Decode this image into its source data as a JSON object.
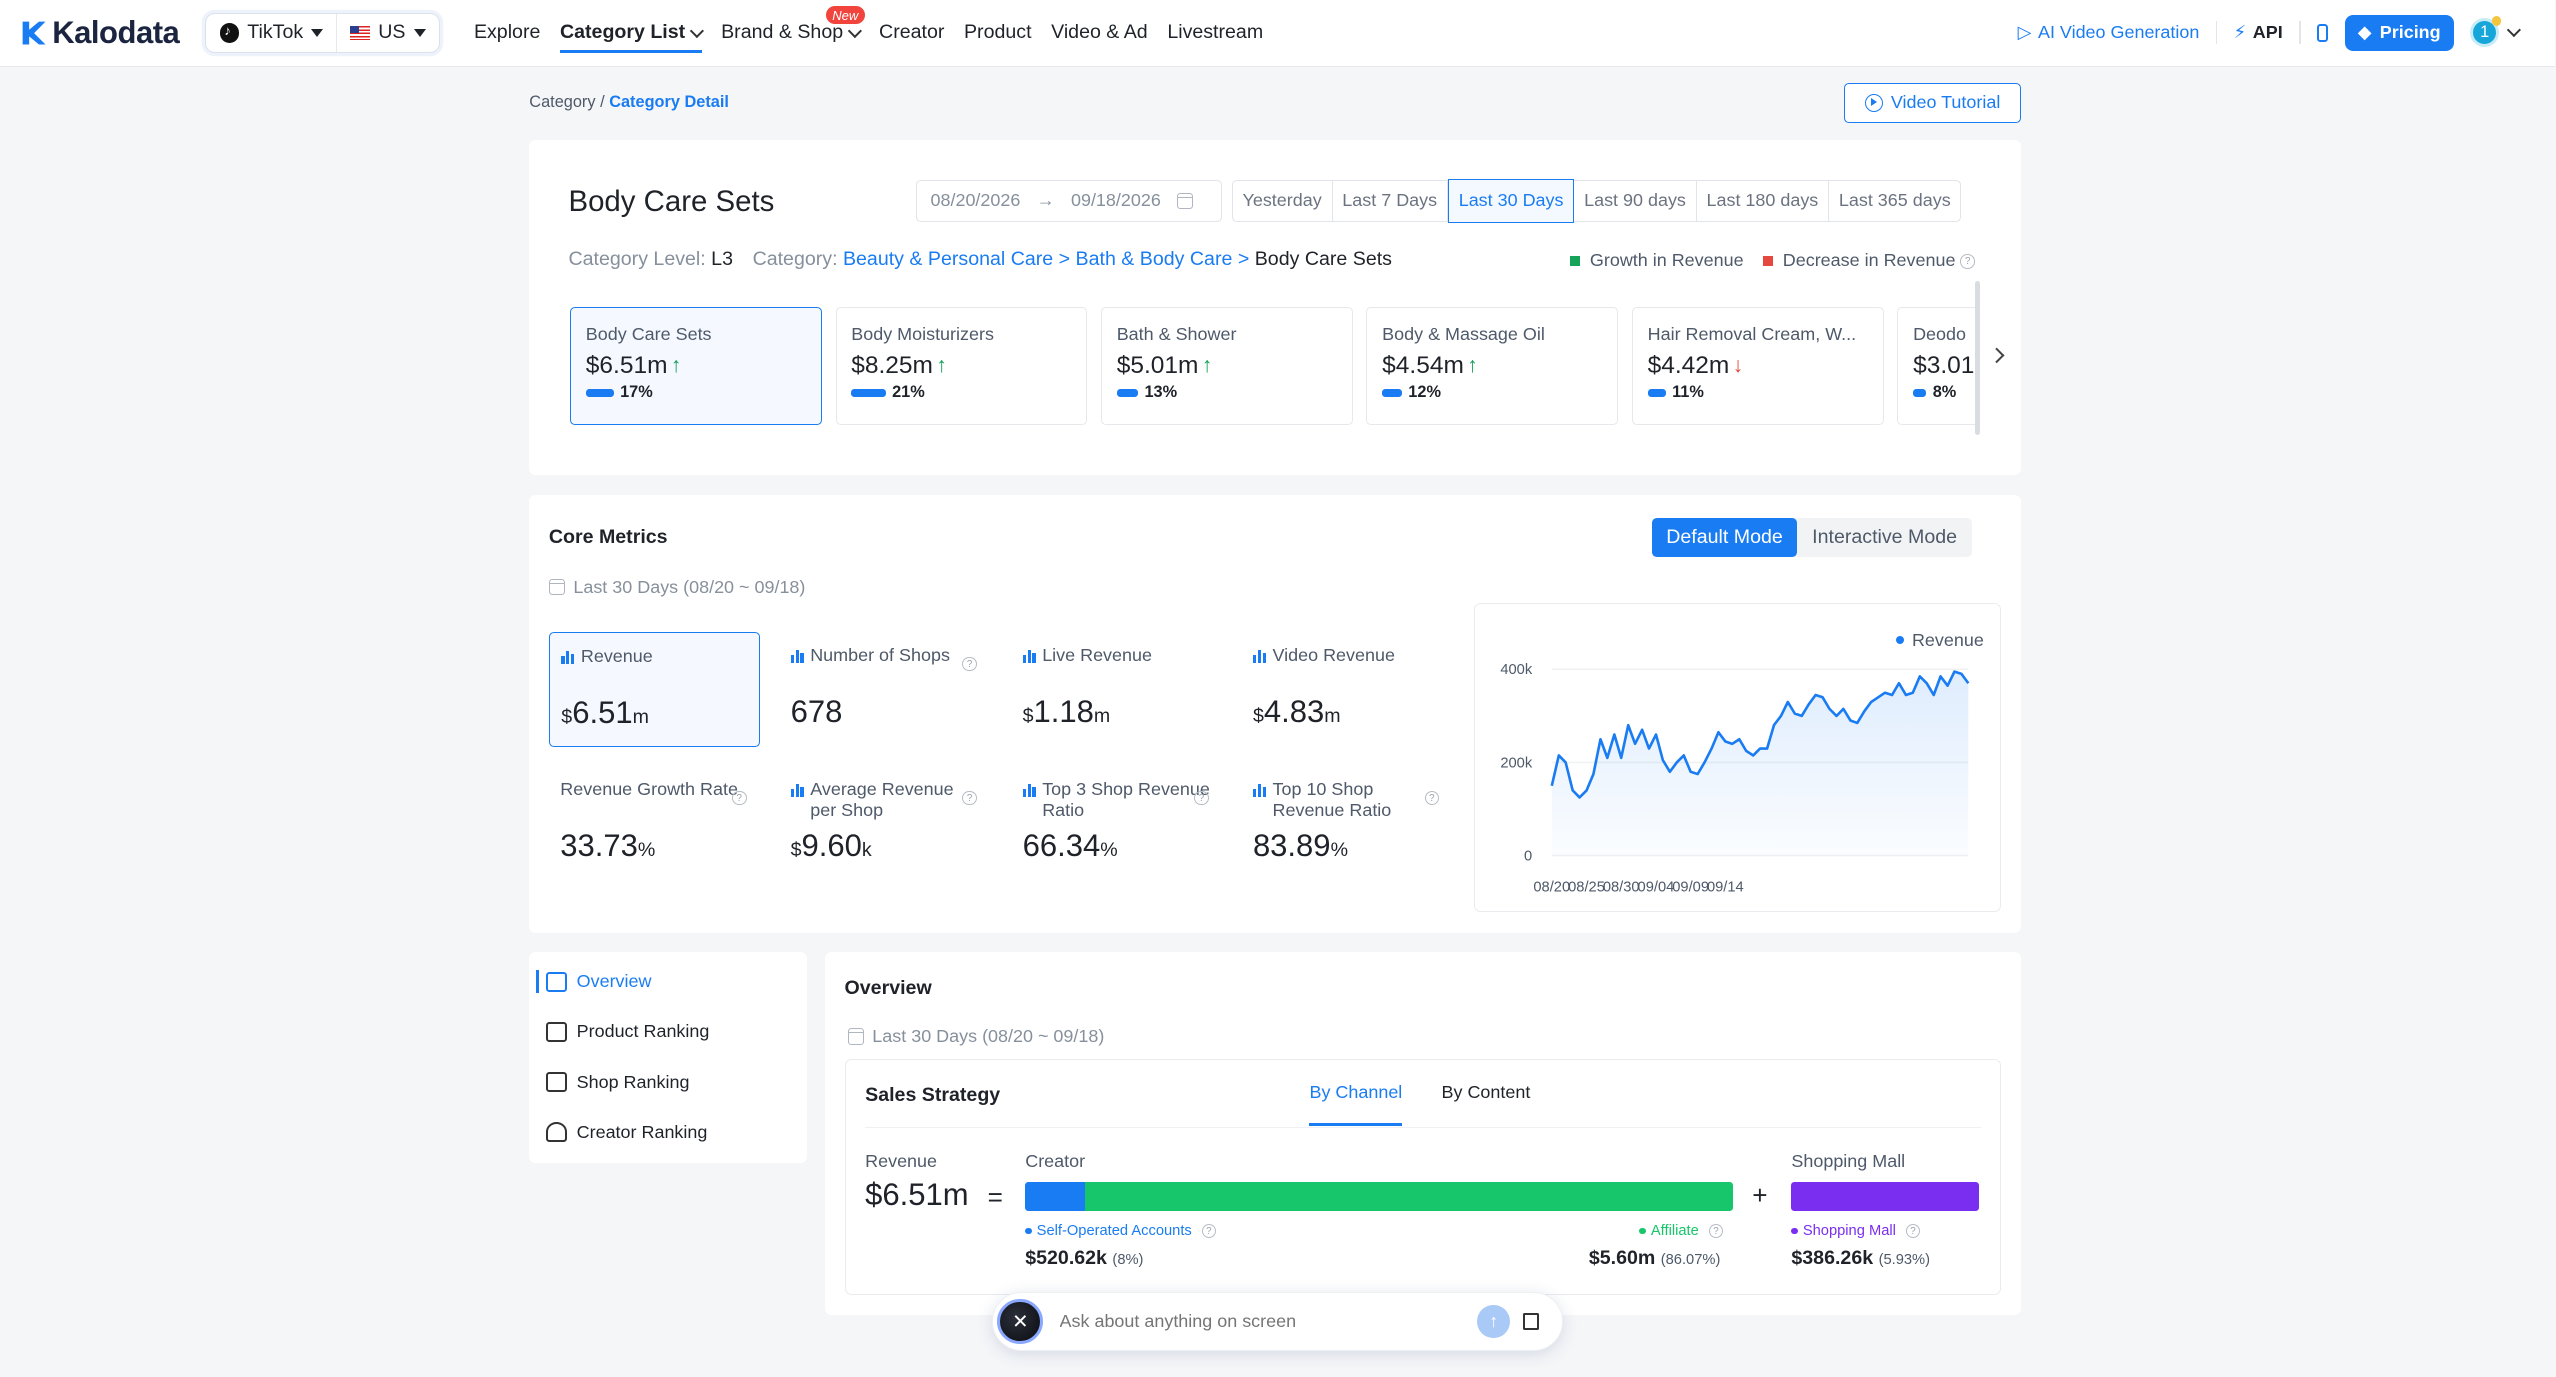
{
  "brand": {
    "name": "Kalodata"
  },
  "region": {
    "platform": "TikTok",
    "country": "US"
  },
  "nav": {
    "items": [
      "Explore",
      "Category List",
      "Brand & Shop",
      "Creator",
      "Product",
      "Video & Ad",
      "Livestream"
    ],
    "new_badge": "New"
  },
  "top_right": {
    "ai_video": "AI Video Generation",
    "api": "API",
    "pricing": "Pricing",
    "avatar": "1"
  },
  "breadcrumb": {
    "root": "Category",
    "sep": "/",
    "current": "Category Detail"
  },
  "video_tutorial": "Video Tutorial",
  "header": {
    "title": "Body Care Sets",
    "date_start": "08/20/2026",
    "date_arrow": "→",
    "date_end": "09/18/2026",
    "periods": [
      "Yesterday",
      "Last 7 Days",
      "Last 30 Days",
      "Last 90 days",
      "Last 180 days",
      "Last 365 days"
    ],
    "active_period_index": 2,
    "category_level_label": "Category Level:",
    "category_level": "L3",
    "category_label": "Category:",
    "category_path": [
      "Beauty & Personal Care",
      "Bath & Body Care",
      "Body Care Sets"
    ],
    "path_sep": ">",
    "legend_growth": "Growth in Revenue",
    "legend_decrease": "Decrease in Revenue",
    "growth_color": "#15a35a",
    "decrease_color": "#e5483d"
  },
  "category_cards": [
    {
      "name": "Body Care Sets",
      "value": "$6.51m",
      "trend": "up",
      "pct": "17%",
      "pct_value": 17
    },
    {
      "name": "Body Moisturizers",
      "value": "$8.25m",
      "trend": "up",
      "pct": "21%",
      "pct_value": 21
    },
    {
      "name": "Bath & Shower",
      "value": "$5.01m",
      "trend": "up",
      "pct": "13%",
      "pct_value": 13
    },
    {
      "name": "Body & Massage Oil",
      "value": "$4.54m",
      "trend": "up",
      "pct": "12%",
      "pct_value": 12
    },
    {
      "name": "Hair Removal Cream, W...",
      "value": "$4.42m",
      "trend": "down",
      "pct": "11%",
      "pct_value": 11
    },
    {
      "name": "Deodo",
      "value": "$3.01",
      "trend": "none",
      "pct": "8%",
      "pct_value": 8
    }
  ],
  "core_metrics": {
    "title": "Core Metrics",
    "modes": [
      "Default Mode",
      "Interactive Mode"
    ],
    "range": "Last 30 Days (08/20 ~ 09/18)",
    "metrics": [
      {
        "label": "Revenue",
        "prefix": "$",
        "value": "6.51",
        "unit": "m",
        "icon": true,
        "help": false
      },
      {
        "label": "Number of Shops",
        "prefix": "",
        "value": "678",
        "unit": "",
        "icon": true,
        "help": true
      },
      {
        "label": "Live Revenue",
        "prefix": "$",
        "value": "1.18",
        "unit": "m",
        "icon": true,
        "help": false
      },
      {
        "label": "Video Revenue",
        "prefix": "$",
        "value": "4.83",
        "unit": "m",
        "icon": true,
        "help": false
      },
      {
        "label": "Revenue Growth Rate",
        "prefix": "",
        "value": "33.73",
        "unit": "%",
        "icon": false,
        "help": true
      },
      {
        "label": "Average Revenue per Shop",
        "prefix": "$",
        "value": "9.60",
        "unit": "k",
        "icon": true,
        "help": true
      },
      {
        "label": "Top 3 Shop Revenue Ratio",
        "prefix": "",
        "value": "66.34",
        "unit": "%",
        "icon": true,
        "help": true
      },
      {
        "label": "Top 10 Shop Revenue Ratio",
        "prefix": "",
        "value": "83.89",
        "unit": "%",
        "icon": true,
        "help": true
      }
    ]
  },
  "chart_data": {
    "type": "area",
    "series": [
      {
        "name": "Revenue",
        "values": [
          150,
          215,
          200,
          140,
          125,
          140,
          175,
          250,
          210,
          260,
          210,
          280,
          240,
          270,
          230,
          260,
          205,
          180,
          200,
          215,
          180,
          175,
          200,
          230,
          265,
          245,
          240,
          250,
          225,
          215,
          230,
          230,
          280,
          300,
          330,
          305,
          300,
          325,
          345,
          340,
          315,
          300,
          315,
          290,
          285,
          310,
          330,
          340,
          350,
          345,
          370,
          345,
          350,
          385,
          370,
          345,
          385,
          365,
          395,
          390,
          370
        ]
      }
    ],
    "x_ticks": [
      "08/20",
      "08/25",
      "08/30",
      "09/04",
      "09/09",
      "09/14"
    ],
    "y_ticks": [
      "0",
      "200k",
      "400k"
    ],
    "ylim": [
      0,
      400
    ],
    "y_unit": "k",
    "color": "#1a7cf2",
    "legend_position": "top-right"
  },
  "side_nav": {
    "items": [
      "Overview",
      "Product Ranking",
      "Shop Ranking",
      "Creator Ranking"
    ],
    "active_index": 0
  },
  "overview": {
    "title": "Overview",
    "range": "Last 30 Days (08/20 ~ 09/18)",
    "strategy_title": "Sales Strategy",
    "tabs": [
      "By Channel",
      "By Content"
    ],
    "revenue_label": "Revenue",
    "revenue_value": "$6.51m",
    "equals": "=",
    "plus": "+",
    "creator_label": "Creator",
    "self_operated": {
      "label": "Self-Operated Accounts",
      "value": "$520.62k",
      "pct": "(8%)",
      "share": 8,
      "color": "#1a7cf2"
    },
    "affiliate": {
      "label": "Affiliate",
      "value": "$5.60m",
      "pct": "(86.07%)",
      "share": 86.07,
      "color": "#17c66b"
    },
    "mall_label": "Shopping Mall",
    "mall": {
      "label": "Shopping Mall",
      "value": "$386.26k",
      "pct": "(5.93%)",
      "share": 5.93,
      "color": "#7a2ef0"
    }
  },
  "ask": {
    "placeholder": "Ask about anything on screen"
  }
}
